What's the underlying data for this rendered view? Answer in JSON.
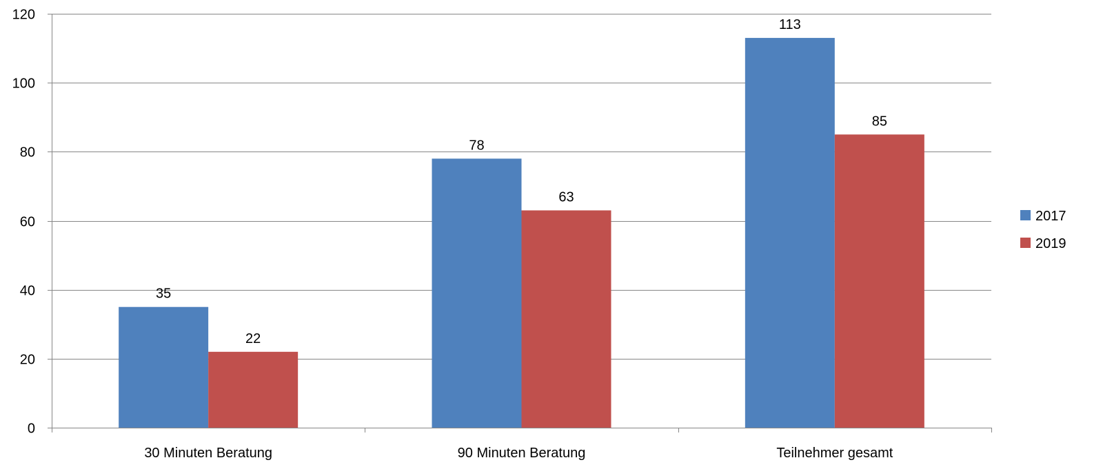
{
  "chart_data": {
    "type": "bar",
    "title": "",
    "xlabel": "",
    "ylabel": "",
    "categories": [
      "30 Minuten Beratung",
      "90 Minuten Beratung",
      "Teilnehmer gesamt"
    ],
    "series": [
      {
        "name": "2017",
        "color": "#4F81BD",
        "values": [
          35,
          78,
          113
        ]
      },
      {
        "name": "2019",
        "color": "#C0504D",
        "values": [
          22,
          63,
          85
        ]
      }
    ],
    "ylim": [
      0,
      120
    ],
    "yticks": [
      0,
      20,
      40,
      60,
      80,
      100,
      120
    ],
    "grid": true,
    "data_labels": true,
    "legend_position": "right"
  }
}
